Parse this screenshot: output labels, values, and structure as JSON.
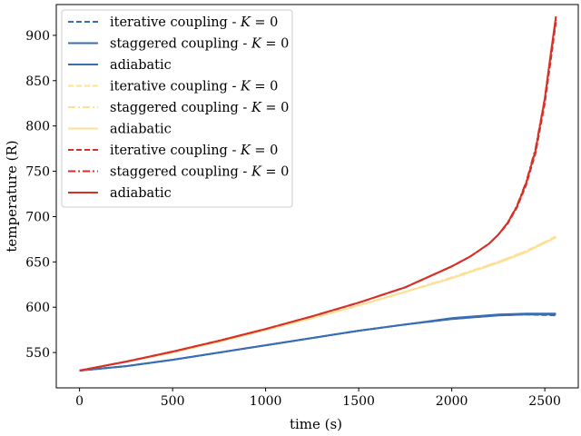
{
  "chart_data": {
    "type": "line",
    "title": "",
    "xlabel": "time (s)",
    "ylabel": "temperature (R)",
    "xlim": [
      -125,
      2680
    ],
    "ylim": [
      511,
      934
    ],
    "xticks": [
      0,
      500,
      1000,
      1500,
      2000,
      2500
    ],
    "yticks": [
      550,
      600,
      650,
      700,
      750,
      800,
      850,
      900
    ],
    "xtick_labels": [
      "0",
      "500",
      "1000",
      "1500",
      "2000",
      "2500"
    ],
    "ytick_labels": [
      "550",
      "600",
      "650",
      "700",
      "750",
      "800",
      "850",
      "900"
    ],
    "grid": false,
    "legend_position": "top-left",
    "series": [
      {
        "name": "iterative coupling - K = 0",
        "color": "#3a6db3",
        "dash": "dashed",
        "x": [
          0,
          250,
          500,
          750,
          1000,
          1250,
          1500,
          1750,
          2000,
          2250,
          2400,
          2560
        ],
        "y": [
          530,
          535,
          542,
          550,
          558,
          566,
          574,
          581,
          587,
          591,
          592,
          591
        ]
      },
      {
        "name": "staggered coupling - K = 0",
        "color": "#3a6db3",
        "dash": "solid",
        "x": [
          0,
          250,
          500,
          750,
          1000,
          1250,
          1500,
          1750,
          2000,
          2250,
          2400,
          2560
        ],
        "y": [
          530,
          535,
          542,
          550,
          558,
          566,
          574,
          581,
          588,
          592,
          593,
          593
        ]
      },
      {
        "name": "adiabatic",
        "color": "#3a6db3",
        "dash": "solid",
        "x": [
          0,
          250,
          500,
          750,
          1000,
          1250,
          1500,
          1750,
          2000,
          2250,
          2400,
          2560
        ],
        "y": [
          530,
          535,
          542,
          550,
          558,
          566,
          574,
          581,
          587,
          591,
          592,
          592
        ]
      },
      {
        "name": "iterative coupling - K = 0",
        "color": "#fedf94",
        "dash": "dashed",
        "x": [
          0,
          250,
          500,
          750,
          1000,
          1250,
          1500,
          1750,
          2000,
          2250,
          2400,
          2560
        ],
        "y": [
          530,
          540,
          550,
          562,
          575,
          588,
          602,
          617,
          632,
          650,
          662,
          678
        ]
      },
      {
        "name": "staggered coupling - K = 0",
        "color": "#fedf94",
        "dash": "dashdot",
        "x": [
          0,
          250,
          500,
          750,
          1000,
          1250,
          1500,
          1750,
          2000,
          2250,
          2400,
          2560
        ],
        "y": [
          530,
          540,
          550,
          562,
          575,
          588,
          602,
          617,
          633,
          650,
          662,
          678
        ]
      },
      {
        "name": "adiabatic",
        "color": "#fedf94",
        "dash": "solid",
        "x": [
          0,
          250,
          500,
          750,
          1000,
          1250,
          1500,
          1750,
          2000,
          2250,
          2400,
          2560
        ],
        "y": [
          530,
          540,
          550,
          562,
          575,
          588,
          602,
          617,
          632,
          649,
          661,
          677
        ]
      },
      {
        "name": "iterative coupling - K = 0",
        "color": "#d73027",
        "dash": "dashed",
        "x": [
          0,
          250,
          500,
          750,
          1000,
          1250,
          1500,
          1750,
          2000,
          2100,
          2200,
          2250,
          2300,
          2350,
          2400,
          2450,
          2500,
          2530,
          2560
        ],
        "y": [
          530,
          540,
          551,
          563,
          576,
          590,
          605,
          622,
          645,
          656,
          670,
          680,
          692,
          710,
          735,
          770,
          825,
          870,
          915
        ]
      },
      {
        "name": "staggered coupling - K = 0",
        "color": "#d73027",
        "dash": "dashdot",
        "x": [
          0,
          250,
          500,
          750,
          1000,
          1250,
          1500,
          1750,
          2000,
          2100,
          2200,
          2250,
          2300,
          2350,
          2400,
          2450,
          2500,
          2530,
          2560
        ],
        "y": [
          530,
          540,
          551,
          563,
          576,
          590,
          605,
          622,
          645,
          656,
          670,
          680,
          693,
          712,
          738,
          775,
          830,
          875,
          917
        ]
      },
      {
        "name": "adiabatic",
        "color": "#d73027",
        "dash": "solid",
        "x": [
          0,
          250,
          500,
          750,
          1000,
          1250,
          1500,
          1750,
          2000,
          2100,
          2200,
          2250,
          2300,
          2350,
          2400,
          2450,
          2500,
          2530,
          2560
        ],
        "y": [
          530,
          540,
          551,
          563,
          576,
          590,
          605,
          622,
          645,
          656,
          670,
          680,
          693,
          711,
          737,
          773,
          830,
          877,
          921
        ]
      }
    ]
  }
}
